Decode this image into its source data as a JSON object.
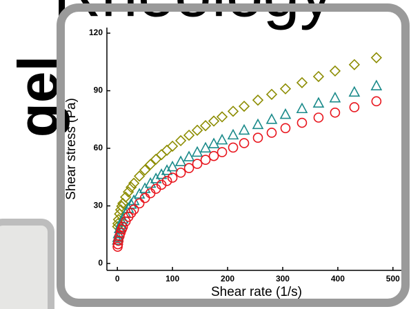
{
  "background": {
    "title": "Rheology",
    "side_label": "gel"
  },
  "chart_data": {
    "type": "scatter",
    "x_label": "Shear rate (1/s)",
    "y_label": "Shear stress (Pa)",
    "xlim": [
      -19,
      519
    ],
    "ylim": [
      -3.6,
      122.9
    ],
    "xticks": [
      0,
      100,
      200,
      300,
      400,
      500
    ],
    "yticks": [
      0,
      30,
      60,
      90,
      120
    ],
    "x": [
      0.5,
      1,
      2,
      4,
      6,
      8,
      10,
      15,
      20,
      25,
      30,
      40,
      50,
      60,
      70,
      80,
      90,
      100,
      115,
      130,
      145,
      160,
      175,
      190,
      210,
      230,
      255,
      280,
      305,
      335,
      365,
      395,
      430,
      470
    ],
    "series": [
      {
        "color": "#8c8c00",
        "marker": "diamond",
        "values": [
          19.2,
          20.8,
          22.9,
          25.8,
          28.0,
          29.8,
          31.3,
          34.6,
          37.3,
          39.7,
          41.8,
          45.5,
          48.7,
          51.6,
          54.3,
          56.7,
          59.0,
          61.1,
          64.0,
          66.8,
          69.4,
          71.8,
          74.2,
          76.4,
          79.3,
          81.9,
          85.1,
          88.1,
          91.0,
          94.2,
          97.4,
          100.3,
          103.6,
          107.2
        ]
      },
      {
        "color": "#1a8a8a",
        "marker": "triangle",
        "values": [
          11.9,
          13.3,
          15.2,
          17.9,
          19.9,
          21.5,
          22.9,
          25.9,
          28.4,
          30.6,
          32.5,
          35.9,
          38.8,
          41.5,
          43.9,
          46.1,
          48.2,
          50.1,
          52.8,
          55.3,
          57.7,
          59.9,
          62.1,
          64.1,
          66.7,
          69.2,
          72.1,
          74.8,
          77.4,
          80.4,
          83.3,
          86.0,
          89.0,
          92.3
        ]
      },
      {
        "color": "#e8141c",
        "marker": "circle",
        "values": [
          8.7,
          10.0,
          11.8,
          14.3,
          16.2,
          17.8,
          19.1,
          21.9,
          24.3,
          26.3,
          28.1,
          31.3,
          34.1,
          36.6,
          38.9,
          41.0,
          43.0,
          44.7,
          47.3,
          49.7,
          51.9,
          54.0,
          56.0,
          58.0,
          60.4,
          62.7,
          65.5,
          68.1,
          70.5,
          73.3,
          76.0,
          78.6,
          81.4,
          84.5
        ]
      }
    ]
  }
}
